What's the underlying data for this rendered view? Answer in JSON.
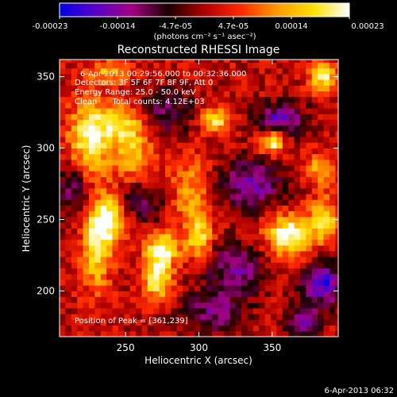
{
  "chart_data": {
    "type": "heatmap",
    "title": "Reconstructed RHESSI Image",
    "xlabel": "Heliocentric X (arcsec)",
    "ylabel": "Heliocentric Y (arcsec)",
    "xlim": [
      205,
      395
    ],
    "ylim": [
      168,
      362
    ],
    "x_ticks": [
      250,
      300,
      350
    ],
    "y_ticks": [
      200,
      250,
      300,
      350
    ],
    "grid": false,
    "colorbar": {
      "ticks": [
        "-0.00023",
        "-0.00014",
        "-4.7e-05",
        "4.7e-05",
        "0.00014",
        "0.00023"
      ],
      "unit_label": "(photons cm⁻² s⁻¹ asec⁻²)",
      "range": [
        -0.00023,
        0.00023
      ],
      "colors": [
        "#0000e6",
        "#5a00c8",
        "#a00080",
        "#1a0000",
        "#b00000",
        "#ff2a00",
        "#ff9a00",
        "#ffe000",
        "#ffffff"
      ]
    },
    "annotations": [
      "6-Apr-2013 00:29:56.000 to 00:32:36.000",
      "Detectors: 3F 5F 6F 7F 8F 9F, Att 0",
      "Energy Range: 25.0 - 50.0 keV",
      "Clean      Total counts: 4.12E+03",
      "Position of Peak = [361,239]"
    ],
    "peak": {
      "x": 361,
      "y": 239
    },
    "footer": "6-Apr-2013 06:32",
    "hot_spots": [
      {
        "x": 225,
        "y": 305,
        "value": 0.00018,
        "sx": 10,
        "sy": 20
      },
      {
        "x": 248,
        "y": 318,
        "value": 0.00016,
        "sx": 14,
        "sy": 10
      },
      {
        "x": 255,
        "y": 295,
        "value": 0.00013,
        "sx": 9,
        "sy": 12
      },
      {
        "x": 238,
        "y": 250,
        "value": 0.00023,
        "sx": 9,
        "sy": 12
      },
      {
        "x": 230,
        "y": 225,
        "value": 0.00015,
        "sx": 7,
        "sy": 18
      },
      {
        "x": 275,
        "y": 230,
        "value": 0.00021,
        "sx": 8,
        "sy": 8
      },
      {
        "x": 272,
        "y": 208,
        "value": 0.0002,
        "sx": 7,
        "sy": 10
      },
      {
        "x": 300,
        "y": 237,
        "value": 0.00016,
        "sx": 6,
        "sy": 10
      },
      {
        "x": 312,
        "y": 320,
        "value": 0.00018,
        "sx": 7,
        "sy": 6
      },
      {
        "x": 295,
        "y": 270,
        "value": 0.00011,
        "sx": 10,
        "sy": 18
      },
      {
        "x": 350,
        "y": 305,
        "value": 0.00022,
        "sx": 6,
        "sy": 6
      },
      {
        "x": 361,
        "y": 239,
        "value": 0.00023,
        "sx": 10,
        "sy": 10
      },
      {
        "x": 385,
        "y": 250,
        "value": 0.00018,
        "sx": 7,
        "sy": 10
      },
      {
        "x": 385,
        "y": 350,
        "value": 0.00018,
        "sx": 7,
        "sy": 7
      },
      {
        "x": 240,
        "y": 354,
        "value": 0.00012,
        "sx": 10,
        "sy": 6
      },
      {
        "x": 382,
        "y": 285,
        "value": 0.00013,
        "sx": 6,
        "sy": 8
      }
    ],
    "cold_spots": [
      {
        "x": 355,
        "y": 320,
        "value": -0.00018,
        "sx": 12,
        "sy": 8
      },
      {
        "x": 335,
        "y": 275,
        "value": -0.00015,
        "sx": 16,
        "sy": 12
      },
      {
        "x": 385,
        "y": 205,
        "value": -0.0002,
        "sx": 10,
        "sy": 10
      },
      {
        "x": 325,
        "y": 215,
        "value": -0.00014,
        "sx": 14,
        "sy": 12
      },
      {
        "x": 275,
        "y": 325,
        "value": -0.00012,
        "sx": 14,
        "sy": 12
      },
      {
        "x": 310,
        "y": 185,
        "value": -0.00012,
        "sx": 16,
        "sy": 10
      },
      {
        "x": 215,
        "y": 272,
        "value": -0.00012,
        "sx": 8,
        "sy": 14
      },
      {
        "x": 260,
        "y": 262,
        "value": -0.0001,
        "sx": 12,
        "sy": 10
      },
      {
        "x": 372,
        "y": 178,
        "value": -0.00016,
        "sx": 8,
        "sy": 8
      }
    ]
  }
}
